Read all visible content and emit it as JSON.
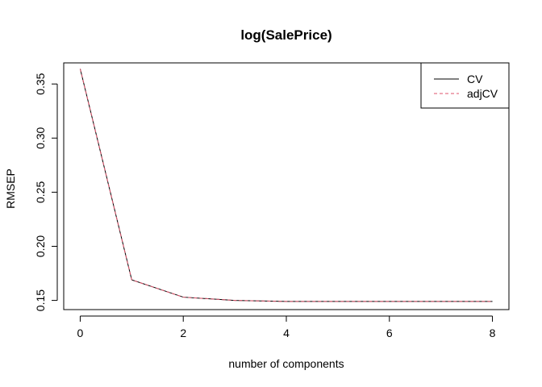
{
  "chart_data": {
    "type": "line",
    "title": "log(SalePrice)",
    "xlabel": "number of components",
    "ylabel": "RMSEP",
    "x": [
      0,
      1,
      2,
      3,
      4,
      5,
      6,
      7,
      8
    ],
    "xlim": [
      -0.32,
      8.32
    ],
    "ylim": [
      0.1415,
      0.3695
    ],
    "x_ticks": [
      0,
      2,
      4,
      6,
      8
    ],
    "x_tick_labels": [
      "0",
      "2",
      "4",
      "6",
      "8"
    ],
    "y_ticks": [
      0.15,
      0.2,
      0.25,
      0.3,
      0.35
    ],
    "y_tick_labels": [
      "0.15",
      "0.20",
      "0.25",
      "0.30",
      "0.35"
    ],
    "series": [
      {
        "name": "CV",
        "color": "#000000",
        "dash": "solid",
        "values": [
          0.364,
          0.169,
          0.153,
          0.15,
          0.149,
          0.149,
          0.149,
          0.149,
          0.149
        ]
      },
      {
        "name": "adjCV",
        "color": "#DF536B",
        "dash": "dashed",
        "values": [
          0.364,
          0.169,
          0.153,
          0.15,
          0.149,
          0.149,
          0.149,
          0.149,
          0.149
        ]
      }
    ],
    "legend_position": "top-right",
    "grid": false
  }
}
